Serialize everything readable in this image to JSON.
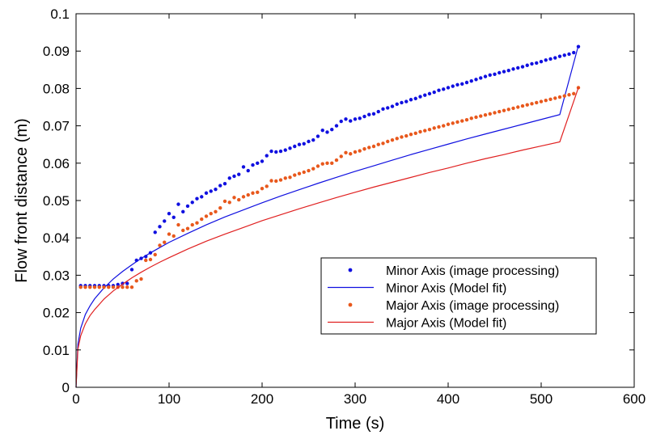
{
  "chart_data": {
    "type": "scatter",
    "title": "",
    "xlabel": "Time (s)",
    "ylabel": "Flow front distance (m)",
    "xlim": [
      0,
      600
    ],
    "ylim": [
      0,
      0.1
    ],
    "xticks": [
      0,
      100,
      200,
      300,
      400,
      500,
      600
    ],
    "xtick_labels": [
      "0",
      "100",
      "200",
      "300",
      "400",
      "500",
      "600"
    ],
    "yticks": [
      0,
      0.01,
      0.02,
      0.03,
      0.04,
      0.05,
      0.06,
      0.07,
      0.08,
      0.09,
      0.1
    ],
    "ytick_labels": [
      "0",
      "0.01",
      "0.02",
      "0.03",
      "0.04",
      "0.05",
      "0.06",
      "0.07",
      "0.08",
      "0.09",
      "0.1"
    ],
    "grid": false,
    "legend_position": "lower-right",
    "series": [
      {
        "name": "Minor Axis (image processing)",
        "kind": "points",
        "color": "#1010e0",
        "x": [
          5,
          10,
          15,
          20,
          25,
          30,
          35,
          40,
          45,
          50,
          55,
          60,
          65,
          70,
          75,
          80,
          85,
          90,
          95,
          100,
          105,
          110,
          115,
          120,
          125,
          130,
          135,
          140,
          145,
          150,
          155,
          160,
          165,
          170,
          175,
          180,
          185,
          190,
          195,
          200,
          205,
          210,
          215,
          220,
          225,
          230,
          235,
          240,
          245,
          250,
          255,
          260,
          265,
          270,
          275,
          280,
          285,
          290,
          295,
          300,
          305,
          310,
          315,
          320,
          325,
          330,
          335,
          340,
          345,
          350,
          355,
          360,
          365,
          370,
          375,
          380,
          385,
          390,
          395,
          400,
          405,
          410,
          415,
          420,
          425,
          430,
          435,
          440,
          445,
          450,
          455,
          460,
          465,
          470,
          475,
          480,
          485,
          490,
          495,
          500,
          505,
          510,
          515,
          520,
          525,
          530,
          535,
          540
        ],
        "y": [
          0.0272,
          0.0272,
          0.0272,
          0.0272,
          0.0272,
          0.0272,
          0.0272,
          0.0272,
          0.0275,
          0.0278,
          0.0278,
          0.0315,
          0.034,
          0.0345,
          0.035,
          0.036,
          0.0415,
          0.043,
          0.0445,
          0.0465,
          0.0455,
          0.049,
          0.047,
          0.0485,
          0.0495,
          0.0505,
          0.051,
          0.052,
          0.0525,
          0.053,
          0.054,
          0.0545,
          0.056,
          0.0565,
          0.057,
          0.059,
          0.058,
          0.0595,
          0.06,
          0.0605,
          0.062,
          0.0632,
          0.063,
          0.0632,
          0.0635,
          0.064,
          0.0645,
          0.065,
          0.0652,
          0.0658,
          0.0662,
          0.0672,
          0.0688,
          0.0683,
          0.069,
          0.07,
          0.0712,
          0.0718,
          0.0713,
          0.0718,
          0.072,
          0.0725,
          0.073,
          0.0732,
          0.0738,
          0.0745,
          0.0748,
          0.0752,
          0.0758,
          0.0762,
          0.0765,
          0.077,
          0.0773,
          0.0778,
          0.0782,
          0.0786,
          0.079,
          0.0795,
          0.0798,
          0.0802,
          0.0806,
          0.081,
          0.0812,
          0.0816,
          0.082,
          0.0824,
          0.0828,
          0.0832,
          0.0836,
          0.0838,
          0.0842,
          0.0845,
          0.0848,
          0.0852,
          0.0855,
          0.0858,
          0.0862,
          0.0866,
          0.0868,
          0.0872,
          0.0876,
          0.0879,
          0.0882,
          0.0886,
          0.0889,
          0.0892,
          0.0896,
          0.0912
        ]
      },
      {
        "name": "Minor Axis (Model fit)",
        "kind": "line",
        "color": "#1010e0",
        "x": [
          0,
          2,
          5,
          10,
          15,
          20,
          30,
          40,
          50,
          60,
          70,
          80,
          90,
          100,
          120,
          140,
          160,
          180,
          200,
          220,
          240,
          260,
          280,
          300,
          320,
          340,
          360,
          380,
          400,
          420,
          440,
          460,
          480,
          500,
          520,
          540
        ],
        "y": [
          0,
          0.0115,
          0.0158,
          0.0195,
          0.0218,
          0.0237,
          0.0266,
          0.029,
          0.031,
          0.0328,
          0.0345,
          0.036,
          0.0374,
          0.0388,
          0.0412,
          0.0435,
          0.0456,
          0.0475,
          0.0494,
          0.0512,
          0.0529,
          0.0546,
          0.0562,
          0.0578,
          0.0593,
          0.0608,
          0.0623,
          0.0637,
          0.0651,
          0.0665,
          0.0678,
          0.0691,
          0.0704,
          0.0717,
          0.073,
          0.0915
        ]
      },
      {
        "name": "Major Axis (image processing)",
        "kind": "points",
        "color": "#e8581c",
        "x": [
          5,
          10,
          15,
          20,
          25,
          30,
          35,
          40,
          45,
          50,
          55,
          60,
          65,
          70,
          75,
          80,
          85,
          90,
          95,
          100,
          105,
          110,
          115,
          120,
          125,
          130,
          135,
          140,
          145,
          150,
          155,
          160,
          165,
          170,
          175,
          180,
          185,
          190,
          195,
          200,
          205,
          210,
          215,
          220,
          225,
          230,
          235,
          240,
          245,
          250,
          255,
          260,
          265,
          270,
          275,
          280,
          285,
          290,
          295,
          300,
          305,
          310,
          315,
          320,
          325,
          330,
          335,
          340,
          345,
          350,
          355,
          360,
          365,
          370,
          375,
          380,
          385,
          390,
          395,
          400,
          405,
          410,
          415,
          420,
          425,
          430,
          435,
          440,
          445,
          450,
          455,
          460,
          465,
          470,
          475,
          480,
          485,
          490,
          495,
          500,
          505,
          510,
          515,
          520,
          525,
          530,
          535,
          540
        ],
        "y": [
          0.0268,
          0.0268,
          0.0268,
          0.0268,
          0.0268,
          0.0268,
          0.0268,
          0.0268,
          0.0268,
          0.0268,
          0.0268,
          0.0268,
          0.0285,
          0.029,
          0.034,
          0.0342,
          0.0355,
          0.038,
          0.0388,
          0.041,
          0.0405,
          0.0435,
          0.042,
          0.0425,
          0.0435,
          0.044,
          0.045,
          0.0458,
          0.0465,
          0.047,
          0.048,
          0.0498,
          0.0495,
          0.0508,
          0.0502,
          0.051,
          0.0515,
          0.052,
          0.0522,
          0.0532,
          0.0538,
          0.0553,
          0.0552,
          0.0555,
          0.056,
          0.0562,
          0.0568,
          0.0572,
          0.0576,
          0.058,
          0.0585,
          0.0592,
          0.0598,
          0.06,
          0.06,
          0.0608,
          0.0618,
          0.0628,
          0.0625,
          0.063,
          0.0633,
          0.0638,
          0.0642,
          0.0645,
          0.065,
          0.0653,
          0.0658,
          0.0662,
          0.0666,
          0.067,
          0.0673,
          0.0677,
          0.068,
          0.0684,
          0.0687,
          0.069,
          0.0694,
          0.0697,
          0.07,
          0.0704,
          0.0707,
          0.071,
          0.0713,
          0.0716,
          0.072,
          0.0723,
          0.0726,
          0.0729,
          0.0732,
          0.0735,
          0.0738,
          0.0741,
          0.0744,
          0.0747,
          0.075,
          0.0753,
          0.0756,
          0.0759,
          0.0762,
          0.0765,
          0.0768,
          0.0771,
          0.0774,
          0.0777,
          0.078,
          0.0783,
          0.0786,
          0.0802
        ]
      },
      {
        "name": "Major Axis (Model fit)",
        "kind": "line",
        "color": "#e02020",
        "x": [
          0,
          2,
          5,
          10,
          15,
          20,
          30,
          40,
          50,
          60,
          70,
          80,
          90,
          100,
          120,
          140,
          160,
          180,
          200,
          220,
          240,
          260,
          280,
          300,
          320,
          340,
          360,
          380,
          400,
          420,
          440,
          460,
          480,
          500,
          520,
          540
        ],
        "y": [
          0,
          0.0102,
          0.0138,
          0.017,
          0.0192,
          0.0208,
          0.0236,
          0.0258,
          0.0276,
          0.0293,
          0.0308,
          0.0322,
          0.0335,
          0.0347,
          0.037,
          0.0391,
          0.041,
          0.0428,
          0.0446,
          0.0462,
          0.0478,
          0.0493,
          0.0508,
          0.0522,
          0.0536,
          0.0549,
          0.0562,
          0.0575,
          0.0587,
          0.06,
          0.0612,
          0.0623,
          0.0635,
          0.0646,
          0.0657,
          0.0802
        ]
      }
    ]
  }
}
